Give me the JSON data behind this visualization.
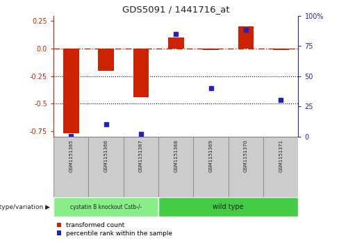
{
  "title": "GDS5091 / 1441716_at",
  "categories": [
    "GSM1151365",
    "GSM1151366",
    "GSM1151367",
    "GSM1151368",
    "GSM1151369",
    "GSM1151370",
    "GSM1151371"
  ],
  "red_values": [
    -0.77,
    -0.2,
    -0.44,
    0.1,
    -0.01,
    0.2,
    -0.01
  ],
  "blue_values": [
    0.5,
    10.0,
    2.0,
    85.0,
    40.0,
    88.0,
    30.0
  ],
  "ylim_left": [
    -0.8,
    0.3
  ],
  "ylim_right": [
    0,
    100
  ],
  "yticks_left": [
    0.25,
    0.0,
    -0.25,
    -0.5,
    -0.75
  ],
  "yticks_right": [
    100,
    75,
    50,
    25,
    0
  ],
  "group1_label": "cystatin B knockout Cstb-/-",
  "group2_label": "wild type",
  "group1_count": 3,
  "group2_count": 4,
  "group_row_label": "genotype/variation",
  "legend_red": "transformed count",
  "legend_blue": "percentile rank within the sample",
  "bar_color": "#cc2200",
  "dot_color": "#2222bb",
  "group1_color": "#88ee88",
  "group2_color": "#44cc44",
  "bg_color": "#ffffff",
  "zero_line_color": "#cc2200",
  "xlim": [
    -0.5,
    6.5
  ],
  "bar_width": 0.45
}
